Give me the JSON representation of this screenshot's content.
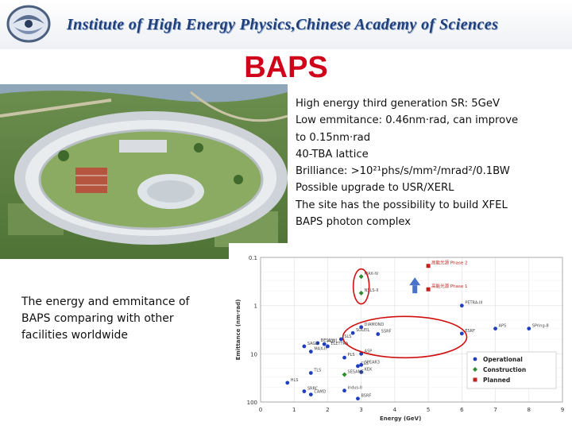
{
  "header": {
    "text": "Institute of High Energy Physics,Chinese Academy of Sciences"
  },
  "title": "BAPS",
  "bullets": [
    "High energy third generation SR: 5GeV",
    "Low emmitance: 0.46nm·rad, can improve",
    "to 0.15nm·rad",
    "40-TBA lattice",
    "Brilliance: >10²¹phs/s/mm²/mrad²/0.1BW",
    "Possible upgrade to USR/XERL",
    "The site has the possibility to build XFEL",
    "BAPS photon complex"
  ],
  "caption": "The energy and emmitance of BAPS comparing with other facilities worldwide",
  "chart_data": {
    "type": "scatter",
    "xlabel": "Energy (GeV)",
    "ylabel": "Emittance (nm·rad)",
    "xlim": [
      0,
      9
    ],
    "ylim": [
      0.1,
      100
    ],
    "y_scale": "log",
    "x_ticks": [
      "0",
      "1",
      "2",
      "3",
      "4",
      "5",
      "6",
      "7",
      "8",
      "9"
    ],
    "y_ticks": [
      "0.1",
      "1",
      "10",
      "100"
    ],
    "legend": [
      {
        "label": "Operational",
        "color": "#1f3fbf",
        "marker": "circle"
      },
      {
        "label": "Construction",
        "color": "#2e8b2e",
        "marker": "diamond"
      },
      {
        "label": "Planned",
        "color": "#c0221f",
        "marker": "square"
      }
    ],
    "highlight_labels": [
      "高能光源 Phase 2",
      "高能光源 Phase 1"
    ],
    "points": [
      {
        "name": "高能光源 Phase 2",
        "x": 5.0,
        "y": 0.15,
        "status": "Planned"
      },
      {
        "name": "高能光源 Phase 1",
        "x": 5.0,
        "y": 0.46,
        "status": "Planned"
      },
      {
        "name": "MAX-IV",
        "x": 3.0,
        "y": 0.25,
        "status": "Construction"
      },
      {
        "name": "NSLS-II",
        "x": 3.0,
        "y": 0.55,
        "status": "Construction"
      },
      {
        "name": "PETRA-III",
        "x": 6.0,
        "y": 1.0,
        "status": "Operational"
      },
      {
        "name": "ESRF",
        "x": 6.0,
        "y": 3.8,
        "status": "Operational"
      },
      {
        "name": "APS",
        "x": 7.0,
        "y": 3.0,
        "status": "Operational"
      },
      {
        "name": "SPring-8",
        "x": 8.0,
        "y": 3.0,
        "status": "Operational"
      },
      {
        "name": "SSRF",
        "x": 3.5,
        "y": 3.9,
        "status": "Operational"
      },
      {
        "name": "DIAMOND",
        "x": 3.0,
        "y": 2.8,
        "status": "Operational"
      },
      {
        "name": "SOLEIL",
        "x": 2.75,
        "y": 3.7,
        "status": "Operational"
      },
      {
        "name": "ASP",
        "x": 3.0,
        "y": 10.0,
        "status": "Operational"
      },
      {
        "name": "CLS",
        "x": 2.9,
        "y": 18.0,
        "status": "Operational"
      },
      {
        "name": "SPEAR3",
        "x": 3.0,
        "y": 17.0,
        "status": "Operational"
      },
      {
        "name": "ELETTRA",
        "x": 2.0,
        "y": 7.0,
        "status": "Operational"
      },
      {
        "name": "ALS",
        "x": 1.9,
        "y": 6.3,
        "status": "Operational"
      },
      {
        "name": "BESSY-II",
        "x": 1.7,
        "y": 6.0,
        "status": "Operational"
      },
      {
        "name": "SLS",
        "x": 2.4,
        "y": 5.0,
        "status": "Operational"
      },
      {
        "name": "MAX-II",
        "x": 1.5,
        "y": 9.0,
        "status": "Operational"
      },
      {
        "name": "SAGA",
        "x": 1.3,
        "y": 7.0,
        "status": "Operational"
      },
      {
        "name": "PLS",
        "x": 2.5,
        "y": 12.0,
        "status": "Operational"
      },
      {
        "name": "KEK",
        "x": 3.0,
        "y": 24.0,
        "status": "Operational"
      },
      {
        "name": "TLS",
        "x": 1.5,
        "y": 25.0,
        "status": "Operational"
      },
      {
        "name": "SESAME",
        "x": 2.5,
        "y": 27.0,
        "status": "Construction"
      },
      {
        "name": "HLS",
        "x": 0.8,
        "y": 40.0,
        "status": "Operational"
      },
      {
        "name": "SRRC",
        "x": 1.3,
        "y": 60.0,
        "status": "Operational"
      },
      {
        "name": "Indus-II",
        "x": 2.5,
        "y": 58.0,
        "status": "Operational"
      },
      {
        "name": "CAMD",
        "x": 1.5,
        "y": 70.0,
        "status": "Operational"
      },
      {
        "name": "BSRF",
        "x": 2.9,
        "y": 85.0,
        "status": "Operational"
      }
    ]
  }
}
